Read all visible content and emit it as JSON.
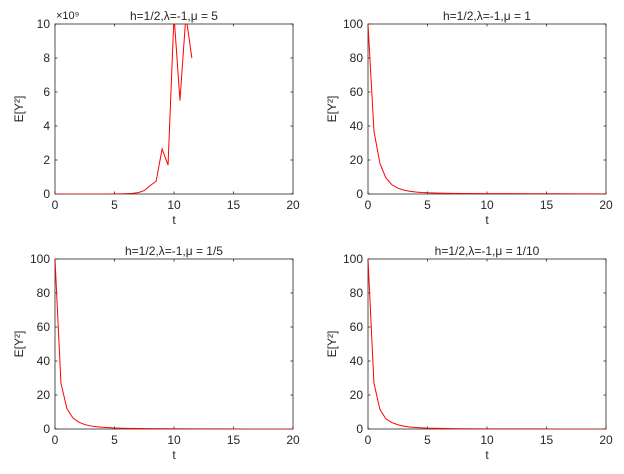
{
  "chart_data": [
    {
      "type": "line",
      "title": "h=1/2,λ=-1,μ = 5",
      "xlabel": "t",
      "ylabel": "E[Y²]",
      "xlim": [
        0,
        20
      ],
      "ylim": [
        0,
        10
      ],
      "y_exponent_label": "×10⁹",
      "xticks": [
        "0",
        "5",
        "10",
        "15",
        "20"
      ],
      "yticks": [
        "0",
        "2",
        "4",
        "6",
        "8",
        "10"
      ],
      "grid": false,
      "series": [
        {
          "color": "#ff0000",
          "x": [
            0,
            0.5,
            1,
            1.5,
            2,
            2.5,
            3,
            3.5,
            4,
            4.5,
            5,
            5.5,
            6,
            6.5,
            7,
            7.5,
            8,
            8.5,
            9,
            9.5,
            10,
            10.5,
            11,
            11.5
          ],
          "y": [
            0,
            0,
            0,
            0,
            0,
            0,
            0,
            0,
            0,
            0,
            0.005,
            0.01,
            0.02,
            0.04,
            0.08,
            0.2,
            0.5,
            0.75,
            2.65,
            1.7,
            10.5,
            5.5,
            10.5,
            8.0
          ]
        }
      ]
    },
    {
      "type": "line",
      "title": "h=1/2,λ=-1,μ = 1",
      "xlabel": "t",
      "ylabel": "E[Y²]",
      "xlim": [
        0,
        20
      ],
      "ylim": [
        0,
        100
      ],
      "xticks": [
        "0",
        "5",
        "10",
        "15",
        "20"
      ],
      "yticks": [
        "0",
        "20",
        "40",
        "60",
        "80",
        "100"
      ],
      "grid": false,
      "series": [
        {
          "color": "#ff0000",
          "x": [
            0,
            0.5,
            1,
            1.5,
            2,
            2.5,
            3,
            3.5,
            4,
            4.5,
            5,
            6,
            7,
            8,
            10,
            12,
            14,
            16,
            18,
            20
          ],
          "y": [
            100,
            37,
            18,
            9.5,
            5.5,
            3.5,
            2.3,
            1.6,
            1.2,
            0.9,
            0.7,
            0.5,
            0.4,
            0.3,
            0.25,
            0.2,
            0.15,
            0.12,
            0.1,
            0.1
          ]
        }
      ]
    },
    {
      "type": "line",
      "title": "h=1/2,λ=-1,μ = 1/5",
      "xlabel": "t",
      "ylabel": "E[Y²]",
      "xlim": [
        0,
        20
      ],
      "ylim": [
        0,
        100
      ],
      "xticks": [
        "0",
        "5",
        "10",
        "15",
        "20"
      ],
      "yticks": [
        "0",
        "20",
        "40",
        "60",
        "80",
        "100"
      ],
      "grid": false,
      "series": [
        {
          "color": "#ff0000",
          "x": [
            0,
            0.5,
            1,
            1.5,
            2,
            2.5,
            3,
            3.5,
            4,
            5,
            6,
            7,
            8,
            10,
            12,
            14,
            16,
            18,
            20
          ],
          "y": [
            100,
            27,
            12,
            6.5,
            4,
            2.6,
            1.8,
            1.3,
            1.0,
            0.6,
            0.4,
            0.3,
            0.2,
            0.12,
            0.08,
            0.05,
            0.03,
            0.02,
            0.01
          ]
        }
      ]
    },
    {
      "type": "line",
      "title": "h=1/2,λ=-1,μ = 1/10",
      "xlabel": "t",
      "ylabel": "E[Y²]",
      "xlim": [
        0,
        20
      ],
      "ylim": [
        0,
        100
      ],
      "xticks": [
        "0",
        "5",
        "10",
        "15",
        "20"
      ],
      "yticks": [
        "0",
        "20",
        "40",
        "60",
        "80",
        "100"
      ],
      "grid": false,
      "series": [
        {
          "color": "#ff0000",
          "x": [
            0,
            0.5,
            1,
            1.5,
            2,
            2.5,
            3,
            3.5,
            4,
            5,
            6,
            7,
            8,
            10,
            12,
            14,
            16,
            18,
            20
          ],
          "y": [
            100,
            27,
            11.5,
            6,
            3.8,
            2.5,
            1.7,
            1.2,
            0.9,
            0.5,
            0.35,
            0.25,
            0.18,
            0.1,
            0.07,
            0.05,
            0.03,
            0.02,
            0.01
          ]
        }
      ]
    }
  ]
}
